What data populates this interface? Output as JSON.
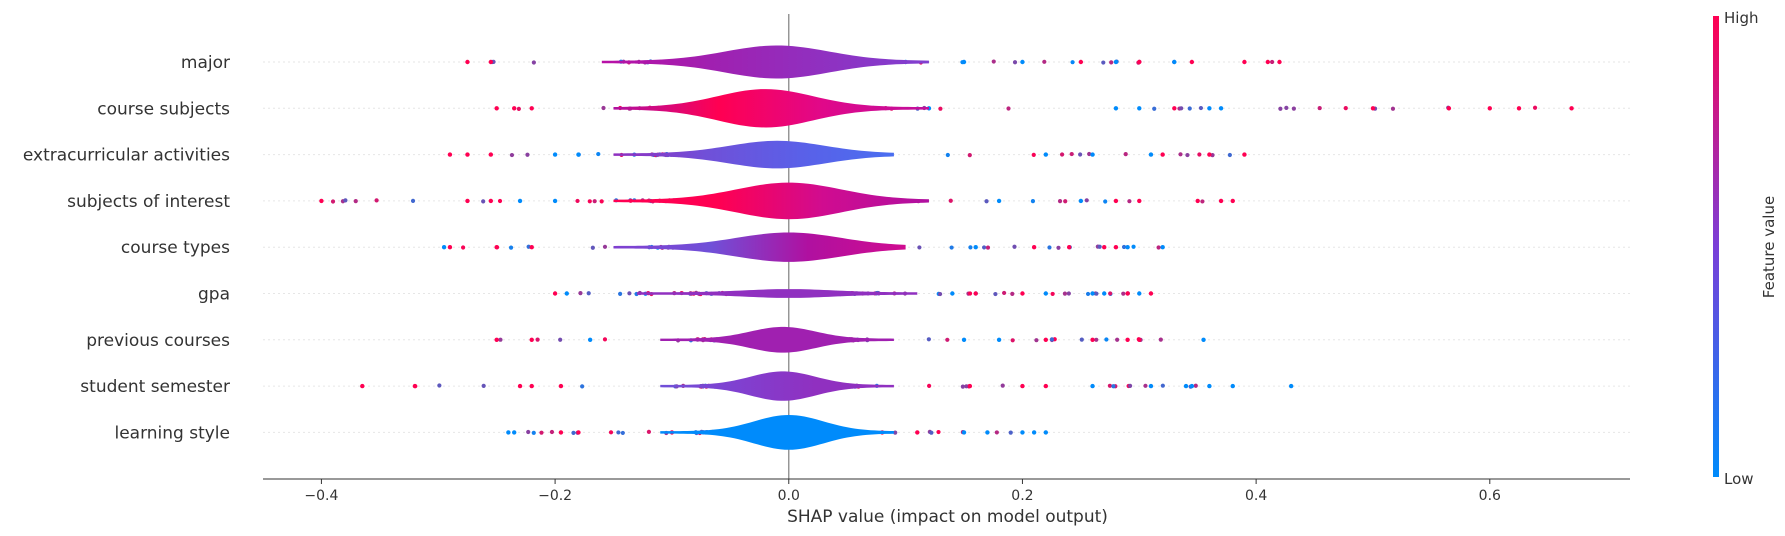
{
  "chart_data": {
    "type": "violin",
    "xlabel": "SHAP value (impact on model output)",
    "xlim": [
      -0.45,
      0.72
    ],
    "xticks": [
      -0.4,
      -0.2,
      0.0,
      0.2,
      0.4,
      0.6
    ],
    "xtick_labels": [
      "−0.4",
      "−0.2",
      "0.0",
      "0.2",
      "0.4",
      "0.6"
    ],
    "colorbar": {
      "title": "Feature value",
      "high_label": "High",
      "low_label": "Low",
      "high_color": "#ff0052",
      "low_color": "#008bfb"
    },
    "features": [
      {
        "name": "major",
        "min": -0.275,
        "max": 0.42,
        "dense_min": -0.13,
        "dense_max": 0.09,
        "width": 0.85,
        "center": -0.01,
        "colors": [
          "#b810a6",
          "#a020b0",
          "#9030c0",
          "#8040d0"
        ],
        "dot_high": [
          -0.275,
          -0.255,
          0.39,
          0.41,
          0.42,
          0.345,
          0.3,
          0.25
        ],
        "dot_low": [
          0.1,
          0.15,
          0.2,
          0.28,
          0.33
        ]
      },
      {
        "name": "course subjects",
        "min": -0.25,
        "max": 0.67,
        "dense_min": -0.12,
        "dense_max": 0.09,
        "width": 1.0,
        "center": -0.02,
        "colors": [
          "#b010a0",
          "#ff0052",
          "#e0088a",
          "#c0109c"
        ],
        "dot_high": [
          -0.25,
          -0.235,
          -0.22,
          0.5,
          0.565,
          0.6,
          0.625,
          0.67,
          0.33
        ],
        "dot_low": [
          0.28,
          0.3,
          0.37,
          0.36,
          0.12
        ]
      },
      {
        "name": "extracurricular activities",
        "min": -0.29,
        "max": 0.39,
        "dense_min": -0.12,
        "dense_max": 0.06,
        "width": 0.7,
        "center": -0.01,
        "colors": [
          "#9030c0",
          "#7050d8",
          "#5a60e8",
          "#4a6ef0"
        ],
        "dot_high": [
          -0.29,
          -0.275,
          -0.255,
          0.36,
          0.39,
          0.32
        ],
        "dot_low": [
          -0.2,
          -0.18,
          0.31,
          0.22,
          0.26
        ]
      },
      {
        "name": "subjects of interest",
        "min": -0.4,
        "max": 0.38,
        "dense_min": -0.12,
        "dense_max": 0.09,
        "width": 0.95,
        "center": 0.0,
        "colors": [
          "#ff0052",
          "#ff0052",
          "#d00c90",
          "#b010a0"
        ],
        "dot_high": [
          -0.4,
          -0.275,
          -0.255,
          0.35,
          0.37,
          0.38,
          0.3,
          0.28
        ],
        "dot_low": [
          -0.23,
          -0.2,
          0.25,
          0.18
        ]
      },
      {
        "name": "course types",
        "min": -0.295,
        "max": 0.32,
        "dense_min": -0.12,
        "dense_max": 0.07,
        "width": 0.75,
        "center": 0.0,
        "colors": [
          "#8040d0",
          "#7050d8",
          "#b010a0",
          "#d00c90"
        ],
        "dot_high": [
          -0.29,
          -0.25,
          -0.22,
          0.27,
          0.28,
          0.24,
          0.21
        ],
        "dot_low": [
          -0.295,
          0.32,
          0.29,
          0.16
        ]
      },
      {
        "name": "gpa",
        "min": -0.2,
        "max": 0.31,
        "dense_min": -0.1,
        "dense_max": 0.08,
        "width": 0.18,
        "center": 0.0,
        "colors": [
          "#9030c0",
          "#9030c0",
          "#9030c0",
          "#9030c0"
        ],
        "dot_high": [
          -0.2,
          0.29,
          0.31,
          0.2,
          0.16
        ],
        "dot_low": [
          -0.19,
          0.26,
          0.27,
          0.3,
          0.22,
          0.14
        ]
      },
      {
        "name": "previous courses",
        "min": -0.25,
        "max": 0.355,
        "dense_min": -0.08,
        "dense_max": 0.06,
        "width": 0.65,
        "center": -0.005,
        "colors": [
          "#a020b0",
          "#a020b0",
          "#a020b0",
          "#a020b0"
        ],
        "dot_high": [
          -0.25,
          -0.22,
          0.26,
          0.3,
          0.29,
          0.22
        ],
        "dot_low": [
          -0.17,
          0.355,
          0.18,
          0.15
        ]
      },
      {
        "name": "student semester",
        "min": -0.365,
        "max": 0.43,
        "dense_min": -0.08,
        "dense_max": 0.06,
        "width": 0.75,
        "center": -0.005,
        "colors": [
          "#7050d8",
          "#8040d0",
          "#9030c0",
          "#9030c0"
        ],
        "dot_high": [
          -0.365,
          -0.32,
          -0.23,
          -0.22,
          -0.195,
          0.22,
          0.2,
          0.155
        ],
        "dot_low": [
          0.43,
          0.38,
          0.345,
          0.36,
          0.31,
          0.34,
          0.26
        ]
      },
      {
        "name": "learning style",
        "min": -0.24,
        "max": 0.22,
        "dense_min": -0.08,
        "dense_max": 0.06,
        "width": 0.9,
        "center": 0.0,
        "colors": [
          "#008bfb",
          "#008bfb",
          "#008bfb",
          "#008bfb"
        ],
        "dot_high": [
          -0.195,
          -0.18,
          -0.1,
          -0.06,
          0.11,
          0.08
        ],
        "dot_low": [
          -0.24,
          -0.235,
          0.15,
          0.17,
          0.2,
          0.22,
          0.21
        ]
      }
    ]
  }
}
